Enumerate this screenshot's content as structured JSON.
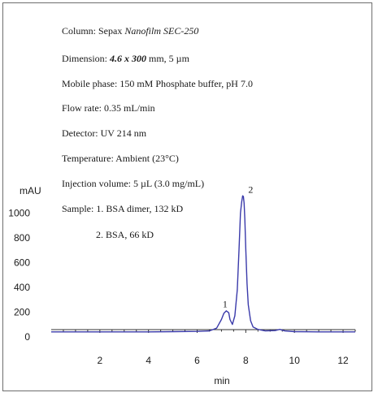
{
  "conditions": {
    "column_prefix": "Column: Sepax ",
    "column_name": "Nanofilm SEC-250",
    "dimension_prefix": "Dimension: ",
    "dimension_value": "4.6 x 300",
    "dimension_suffix": " mm, 5 µm",
    "mobile_phase": "Mobile phase: 150 mM Phosphate buffer, pH 7.0",
    "flow_rate": "Flow rate: 0.35 mL/min",
    "detector": "Detector: UV 214 nm",
    "temperature": "Temperature: Ambient (23°C)",
    "injection_volume": "Injection volume: 5 µL (3.0 mg/mL)",
    "sample_line1": "Sample: 1. BSA dimer, 132 kD",
    "sample_line2": "2. BSA, 66 kD"
  },
  "chart_data": {
    "type": "line",
    "title": "",
    "xlabel": "min",
    "ylabel": "mAU",
    "xlim": [
      0,
      12.5
    ],
    "ylim": [
      -60,
      1240
    ],
    "x_ticks": [
      2,
      4,
      6,
      8,
      10,
      12
    ],
    "y_ticks": [
      0,
      200,
      400,
      600,
      800,
      1000
    ],
    "grid": false,
    "line_color": "#3a3aaa",
    "series": [
      {
        "x": [
          0,
          2,
          4,
          5,
          6,
          6.5,
          6.8,
          7.0,
          7.1,
          7.2,
          7.3,
          7.35,
          7.45,
          7.55,
          7.65,
          7.72,
          7.78,
          7.83,
          7.87,
          7.9,
          7.93,
          7.96,
          8.0,
          8.05,
          8.1,
          8.2,
          8.3,
          8.5,
          8.8,
          9.2,
          9.4,
          9.6,
          10,
          11,
          12.5
        ],
        "y": [
          40,
          40,
          40,
          42,
          44,
          48,
          70,
          140,
          190,
          210,
          195,
          140,
          100,
          170,
          380,
          700,
          1000,
          1090,
          1140,
          1135,
          1080,
          950,
          700,
          430,
          260,
          130,
          80,
          60,
          48,
          50,
          60,
          48,
          42,
          40,
          40
        ]
      }
    ],
    "annotations": [
      {
        "text": "1",
        "x": 7.15,
        "y": 240
      },
      {
        "text": "2",
        "x": 8.2,
        "y": 1165
      }
    ]
  }
}
